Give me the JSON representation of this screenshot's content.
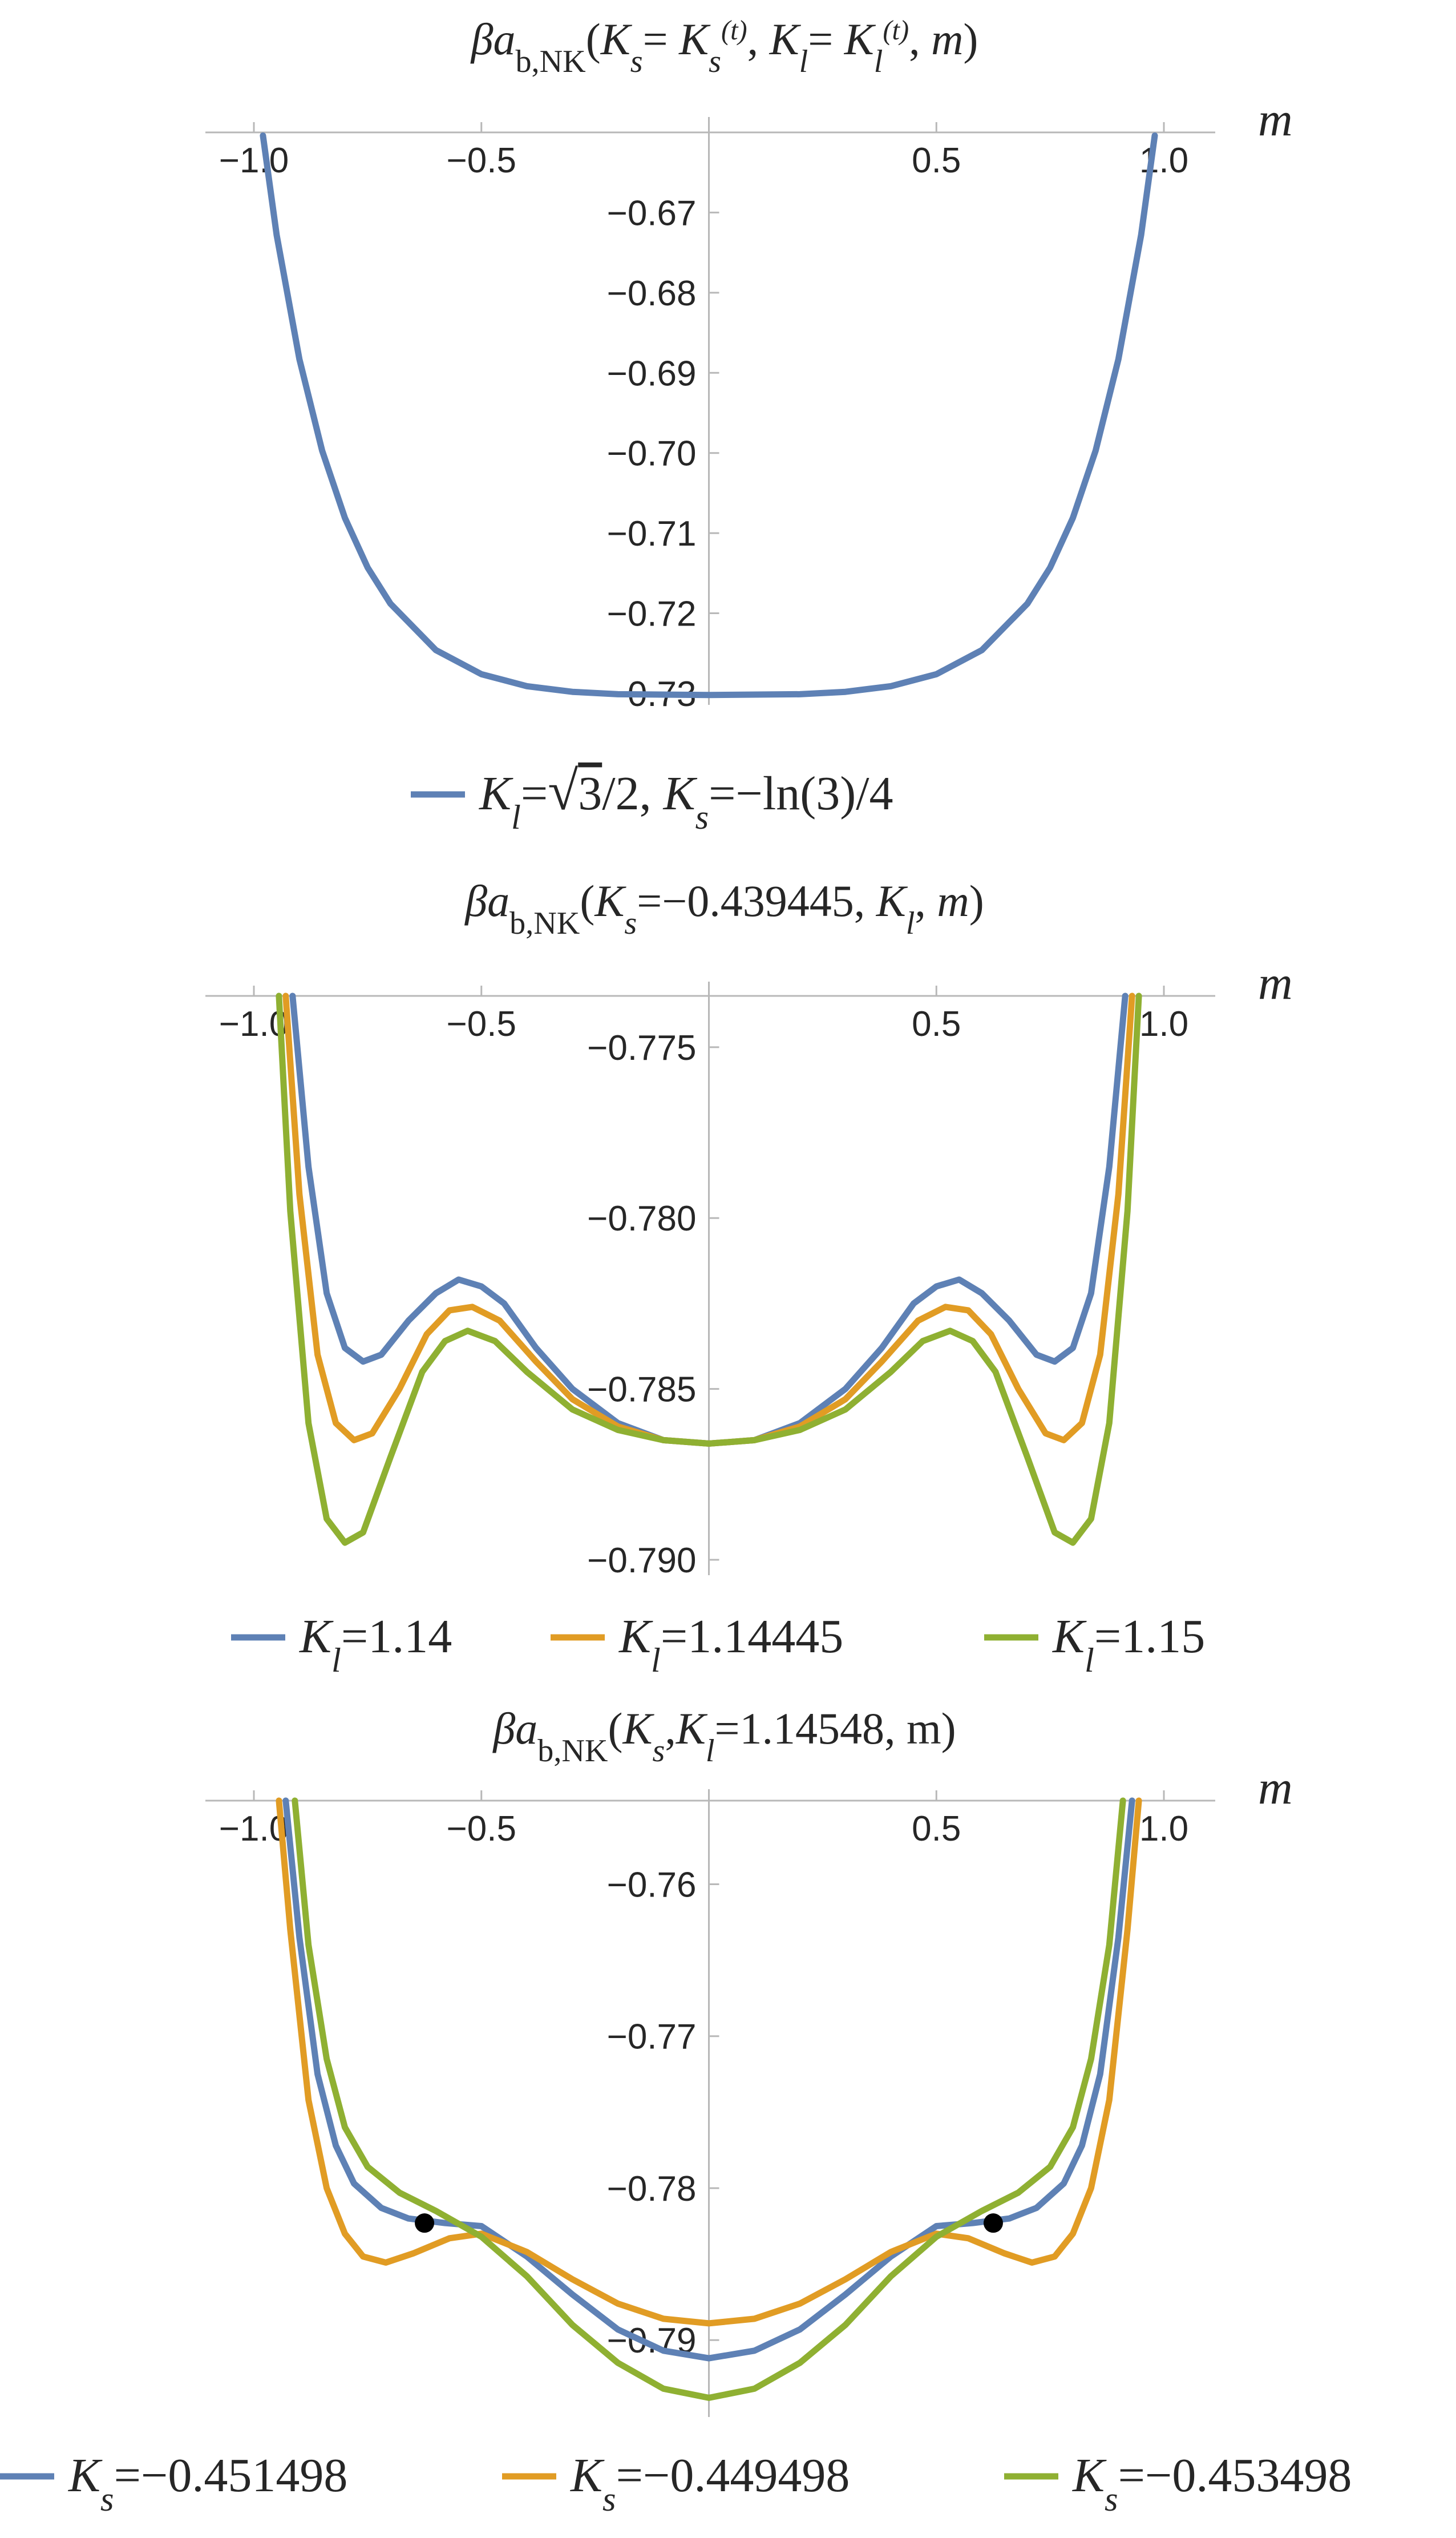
{
  "chart_data": [
    {
      "type": "line",
      "title_parts": [
        "βa",
        "b,NK",
        "(",
        "K",
        "s",
        "= ",
        "K",
        "s",
        "(t)",
        ", ",
        "K",
        "l",
        "= ",
        "K",
        "l",
        "(t)",
        ", ",
        "m",
        ")"
      ],
      "xlabel": "m",
      "xlim": [
        -1.0,
        1.0
      ],
      "ylim": [
        -0.7305,
        -0.66
      ],
      "x_ticks": [
        {
          "value": -1.0,
          "label": "−1.0"
        },
        {
          "value": -0.5,
          "label": "−0.5"
        },
        {
          "value": 0.5,
          "label": "0.5"
        },
        {
          "value": 1.0,
          "label": "1.0"
        }
      ],
      "y_ticks": [
        {
          "value": -0.67,
          "label": "−0.67"
        },
        {
          "value": -0.68,
          "label": "−0.68"
        },
        {
          "value": -0.69,
          "label": "−0.69"
        },
        {
          "value": -0.7,
          "label": "−0.70"
        },
        {
          "value": -0.71,
          "label": "−0.71"
        },
        {
          "value": -0.72,
          "label": "−0.72"
        },
        {
          "value": -0.73,
          "label": "−0.73"
        }
      ],
      "series": [
        {
          "legend_parts": [
            "K",
            "l",
            "=",
            "√",
            "3",
            "/2, ",
            "K",
            "s",
            "=−ln(3)/4"
          ],
          "color": "#5e81b5",
          "points": [
            [
              -0.98,
              -0.6604
            ],
            [
              -0.95,
              -0.6728
            ],
            [
              -0.9,
              -0.6883
            ],
            [
              -0.85,
              -0.6997
            ],
            [
              -0.8,
              -0.7081
            ],
            [
              -0.75,
              -0.7143
            ],
            [
              -0.7,
              -0.7188
            ],
            [
              -0.6,
              -0.7246
            ],
            [
              -0.5,
              -0.7276
            ],
            [
              -0.4,
              -0.7291
            ],
            [
              -0.3,
              -0.7298
            ],
            [
              -0.2,
              -0.7301
            ],
            [
              0.0,
              -0.7302
            ],
            [
              0.2,
              -0.7301
            ],
            [
              0.3,
              -0.7298
            ],
            [
              0.4,
              -0.7291
            ],
            [
              0.5,
              -0.7276
            ],
            [
              0.6,
              -0.7246
            ],
            [
              0.7,
              -0.7188
            ],
            [
              0.75,
              -0.7143
            ],
            [
              0.8,
              -0.7081
            ],
            [
              0.85,
              -0.6997
            ],
            [
              0.9,
              -0.6883
            ],
            [
              0.95,
              -0.6728
            ],
            [
              0.98,
              -0.6604
            ]
          ]
        }
      ]
    },
    {
      "type": "line",
      "title_parts": [
        "βa",
        "b,NK",
        "(",
        "K",
        "s",
        "=−0.439445, ",
        "K",
        "l",
        ", ",
        "m",
        ")"
      ],
      "xlabel": "m",
      "xlim": [
        -1.0,
        1.0
      ],
      "ylim": [
        -0.7902,
        -0.7735
      ],
      "x_ticks": [
        {
          "value": -1.0,
          "label": "−1.0"
        },
        {
          "value": -0.5,
          "label": "−0.5"
        },
        {
          "value": 0.5,
          "label": "0.5"
        },
        {
          "value": 1.0,
          "label": "1.0"
        }
      ],
      "y_ticks": [
        {
          "value": -0.775,
          "label": "−0.775"
        },
        {
          "value": -0.78,
          "label": "−0.780"
        },
        {
          "value": -0.785,
          "label": "−0.785"
        },
        {
          "value": -0.79,
          "label": "−0.790"
        }
      ],
      "series": [
        {
          "legend_parts": [
            "K",
            "l",
            "=1.14"
          ],
          "color": "#5e81b5",
          "points": [
            [
              -0.915,
              -0.7735
            ],
            [
              -0.88,
              -0.7785
            ],
            [
              -0.84,
              -0.7822
            ],
            [
              -0.8,
              -0.7838
            ],
            [
              -0.76,
              -0.7842
            ],
            [
              -0.72,
              -0.784
            ],
            [
              -0.66,
              -0.783
            ],
            [
              -0.6,
              -0.7822
            ],
            [
              -0.55,
              -0.7818
            ],
            [
              -0.5,
              -0.782
            ],
            [
              -0.45,
              -0.7825
            ],
            [
              -0.38,
              -0.7838
            ],
            [
              -0.3,
              -0.785
            ],
            [
              -0.2,
              -0.786
            ],
            [
              -0.1,
              -0.7865
            ],
            [
              0.0,
              -0.7866
            ],
            [
              0.1,
              -0.7865
            ],
            [
              0.2,
              -0.786
            ],
            [
              0.3,
              -0.785
            ],
            [
              0.38,
              -0.7838
            ],
            [
              0.45,
              -0.7825
            ],
            [
              0.5,
              -0.782
            ],
            [
              0.55,
              -0.7818
            ],
            [
              0.6,
              -0.7822
            ],
            [
              0.66,
              -0.783
            ],
            [
              0.72,
              -0.784
            ],
            [
              0.76,
              -0.7842
            ],
            [
              0.8,
              -0.7838
            ],
            [
              0.84,
              -0.7822
            ],
            [
              0.88,
              -0.7785
            ],
            [
              0.915,
              -0.7735
            ]
          ]
        },
        {
          "legend_parts": [
            "K",
            "l",
            "=1.14445"
          ],
          "color": "#e19c24",
          "points": [
            [
              -0.93,
              -0.7735
            ],
            [
              -0.9,
              -0.7793
            ],
            [
              -0.86,
              -0.784
            ],
            [
              -0.82,
              -0.786
            ],
            [
              -0.78,
              -0.7865
            ],
            [
              -0.74,
              -0.7863
            ],
            [
              -0.68,
              -0.785
            ],
            [
              -0.62,
              -0.7834
            ],
            [
              -0.57,
              -0.7827
            ],
            [
              -0.52,
              -0.7826
            ],
            [
              -0.46,
              -0.783
            ],
            [
              -0.38,
              -0.7842
            ],
            [
              -0.3,
              -0.7853
            ],
            [
              -0.2,
              -0.7861
            ],
            [
              -0.1,
              -0.7865
            ],
            [
              0.0,
              -0.7866
            ],
            [
              0.1,
              -0.7865
            ],
            [
              0.2,
              -0.7861
            ],
            [
              0.3,
              -0.7853
            ],
            [
              0.38,
              -0.7842
            ],
            [
              0.46,
              -0.783
            ],
            [
              0.52,
              -0.7826
            ],
            [
              0.57,
              -0.7827
            ],
            [
              0.62,
              -0.7834
            ],
            [
              0.68,
              -0.785
            ],
            [
              0.74,
              -0.7863
            ],
            [
              0.78,
              -0.7865
            ],
            [
              0.82,
              -0.786
            ],
            [
              0.86,
              -0.784
            ],
            [
              0.9,
              -0.7793
            ],
            [
              0.93,
              -0.7735
            ]
          ]
        },
        {
          "legend_parts": [
            "K",
            "l",
            "=1.15"
          ],
          "color": "#8fb032",
          "points": [
            [
              -0.945,
              -0.7735
            ],
            [
              -0.92,
              -0.7798
            ],
            [
              -0.88,
              -0.786
            ],
            [
              -0.84,
              -0.7888
            ],
            [
              -0.8,
              -0.7895
            ],
            [
              -0.76,
              -0.7892
            ],
            [
              -0.7,
              -0.787
            ],
            [
              -0.63,
              -0.7845
            ],
            [
              -0.58,
              -0.7836
            ],
            [
              -0.53,
              -0.7833
            ],
            [
              -0.47,
              -0.7836
            ],
            [
              -0.4,
              -0.7845
            ],
            [
              -0.3,
              -0.7856
            ],
            [
              -0.2,
              -0.7862
            ],
            [
              -0.1,
              -0.7865
            ],
            [
              0.0,
              -0.7866
            ],
            [
              0.1,
              -0.7865
            ],
            [
              0.2,
              -0.7862
            ],
            [
              0.3,
              -0.7856
            ],
            [
              0.4,
              -0.7845
            ],
            [
              0.47,
              -0.7836
            ],
            [
              0.53,
              -0.7833
            ],
            [
              0.58,
              -0.7836
            ],
            [
              0.63,
              -0.7845
            ],
            [
              0.7,
              -0.787
            ],
            [
              0.76,
              -0.7892
            ],
            [
              0.8,
              -0.7895
            ],
            [
              0.84,
              -0.7888
            ],
            [
              0.88,
              -0.786
            ],
            [
              0.92,
              -0.7798
            ],
            [
              0.945,
              -0.7735
            ]
          ]
        }
      ]
    },
    {
      "type": "line",
      "title_parts": [
        "βa",
        "b,NK",
        "(",
        "K",
        "s",
        ",",
        "K",
        "l",
        "=1.14548, m)"
      ],
      "xlabel": "m",
      "xlim": [
        -1.0,
        1.0
      ],
      "ylim": [
        -0.7945,
        -0.7545
      ],
      "x_ticks": [
        {
          "value": -1.0,
          "label": "−1.0"
        },
        {
          "value": -0.5,
          "label": "−0.5"
        },
        {
          "value": 0.5,
          "label": "0.5"
        },
        {
          "value": 1.0,
          "label": "1.0"
        }
      ],
      "y_ticks": [
        {
          "value": -0.76,
          "label": "−0.76"
        },
        {
          "value": -0.77,
          "label": "−0.77"
        },
        {
          "value": -0.78,
          "label": "−0.78"
        },
        {
          "value": -0.79,
          "label": "−0.79"
        }
      ],
      "series": [
        {
          "legend_parts": [
            "K",
            "s",
            "=−0.451498"
          ],
          "color": "#5e81b5",
          "points": [
            [
              -0.93,
              -0.7545
            ],
            [
              -0.9,
              -0.7635
            ],
            [
              -0.86,
              -0.7725
            ],
            [
              -0.82,
              -0.7772
            ],
            [
              -0.78,
              -0.7797
            ],
            [
              -0.72,
              -0.7813
            ],
            [
              -0.66,
              -0.782
            ],
            [
              -0.58,
              -0.7823
            ],
            [
              -0.5,
              -0.7825
            ],
            [
              -0.4,
              -0.7845
            ],
            [
              -0.3,
              -0.787
            ],
            [
              -0.2,
              -0.7893
            ],
            [
              -0.1,
              -0.7907
            ],
            [
              0.0,
              -0.7912
            ],
            [
              0.1,
              -0.7907
            ],
            [
              0.2,
              -0.7893
            ],
            [
              0.3,
              -0.787
            ],
            [
              0.4,
              -0.7845
            ],
            [
              0.5,
              -0.7825
            ],
            [
              0.58,
              -0.7823
            ],
            [
              0.66,
              -0.782
            ],
            [
              0.72,
              -0.7813
            ],
            [
              0.78,
              -0.7797
            ],
            [
              0.82,
              -0.7772
            ],
            [
              0.86,
              -0.7725
            ],
            [
              0.9,
              -0.7635
            ],
            [
              0.93,
              -0.7545
            ]
          ]
        },
        {
          "legend_parts": [
            "K",
            "s",
            "=−0.449498"
          ],
          "color": "#e19c24",
          "points": [
            [
              -0.945,
              -0.7545
            ],
            [
              -0.92,
              -0.763
            ],
            [
              -0.88,
              -0.7742
            ],
            [
              -0.84,
              -0.78
            ],
            [
              -0.8,
              -0.783
            ],
            [
              -0.76,
              -0.7845
            ],
            [
              -0.71,
              -0.7849
            ],
            [
              -0.65,
              -0.7843
            ],
            [
              -0.57,
              -0.7833
            ],
            [
              -0.5,
              -0.783
            ],
            [
              -0.4,
              -0.7842
            ],
            [
              -0.3,
              -0.786
            ],
            [
              -0.2,
              -0.7876
            ],
            [
              -0.1,
              -0.7886
            ],
            [
              0.0,
              -0.7889
            ],
            [
              0.1,
              -0.7886
            ],
            [
              0.2,
              -0.7876
            ],
            [
              0.3,
              -0.786
            ],
            [
              0.4,
              -0.7842
            ],
            [
              0.5,
              -0.783
            ],
            [
              0.57,
              -0.7833
            ],
            [
              0.65,
              -0.7843
            ],
            [
              0.71,
              -0.7849
            ],
            [
              0.76,
              -0.7845
            ],
            [
              0.8,
              -0.783
            ],
            [
              0.84,
              -0.78
            ],
            [
              0.88,
              -0.7742
            ],
            [
              0.92,
              -0.763
            ],
            [
              0.945,
              -0.7545
            ]
          ]
        },
        {
          "legend_parts": [
            "K",
            "s",
            "=−0.453498"
          ],
          "color": "#8fb032",
          "points": [
            [
              -0.91,
              -0.7545
            ],
            [
              -0.88,
              -0.764
            ],
            [
              -0.84,
              -0.7715
            ],
            [
              -0.8,
              -0.776
            ],
            [
              -0.75,
              -0.7786
            ],
            [
              -0.68,
              -0.7803
            ],
            [
              -0.6,
              -0.7815
            ],
            [
              -0.5,
              -0.7832
            ],
            [
              -0.4,
              -0.7858
            ],
            [
              -0.3,
              -0.789
            ],
            [
              -0.2,
              -0.7915
            ],
            [
              -0.1,
              -0.7932
            ],
            [
              0.0,
              -0.7938
            ],
            [
              0.1,
              -0.7932
            ],
            [
              0.2,
              -0.7915
            ],
            [
              0.3,
              -0.789
            ],
            [
              0.4,
              -0.7858
            ],
            [
              0.5,
              -0.7832
            ],
            [
              0.6,
              -0.7815
            ],
            [
              0.68,
              -0.7803
            ],
            [
              0.75,
              -0.7786
            ],
            [
              0.8,
              -0.776
            ],
            [
              0.84,
              -0.7715
            ],
            [
              0.88,
              -0.764
            ],
            [
              0.91,
              -0.7545
            ]
          ]
        }
      ],
      "markers": [
        {
          "x": -0.625,
          "y": -0.7823,
          "color": "#000000"
        },
        {
          "x": 0.625,
          "y": -0.7823,
          "color": "#000000"
        }
      ]
    }
  ]
}
